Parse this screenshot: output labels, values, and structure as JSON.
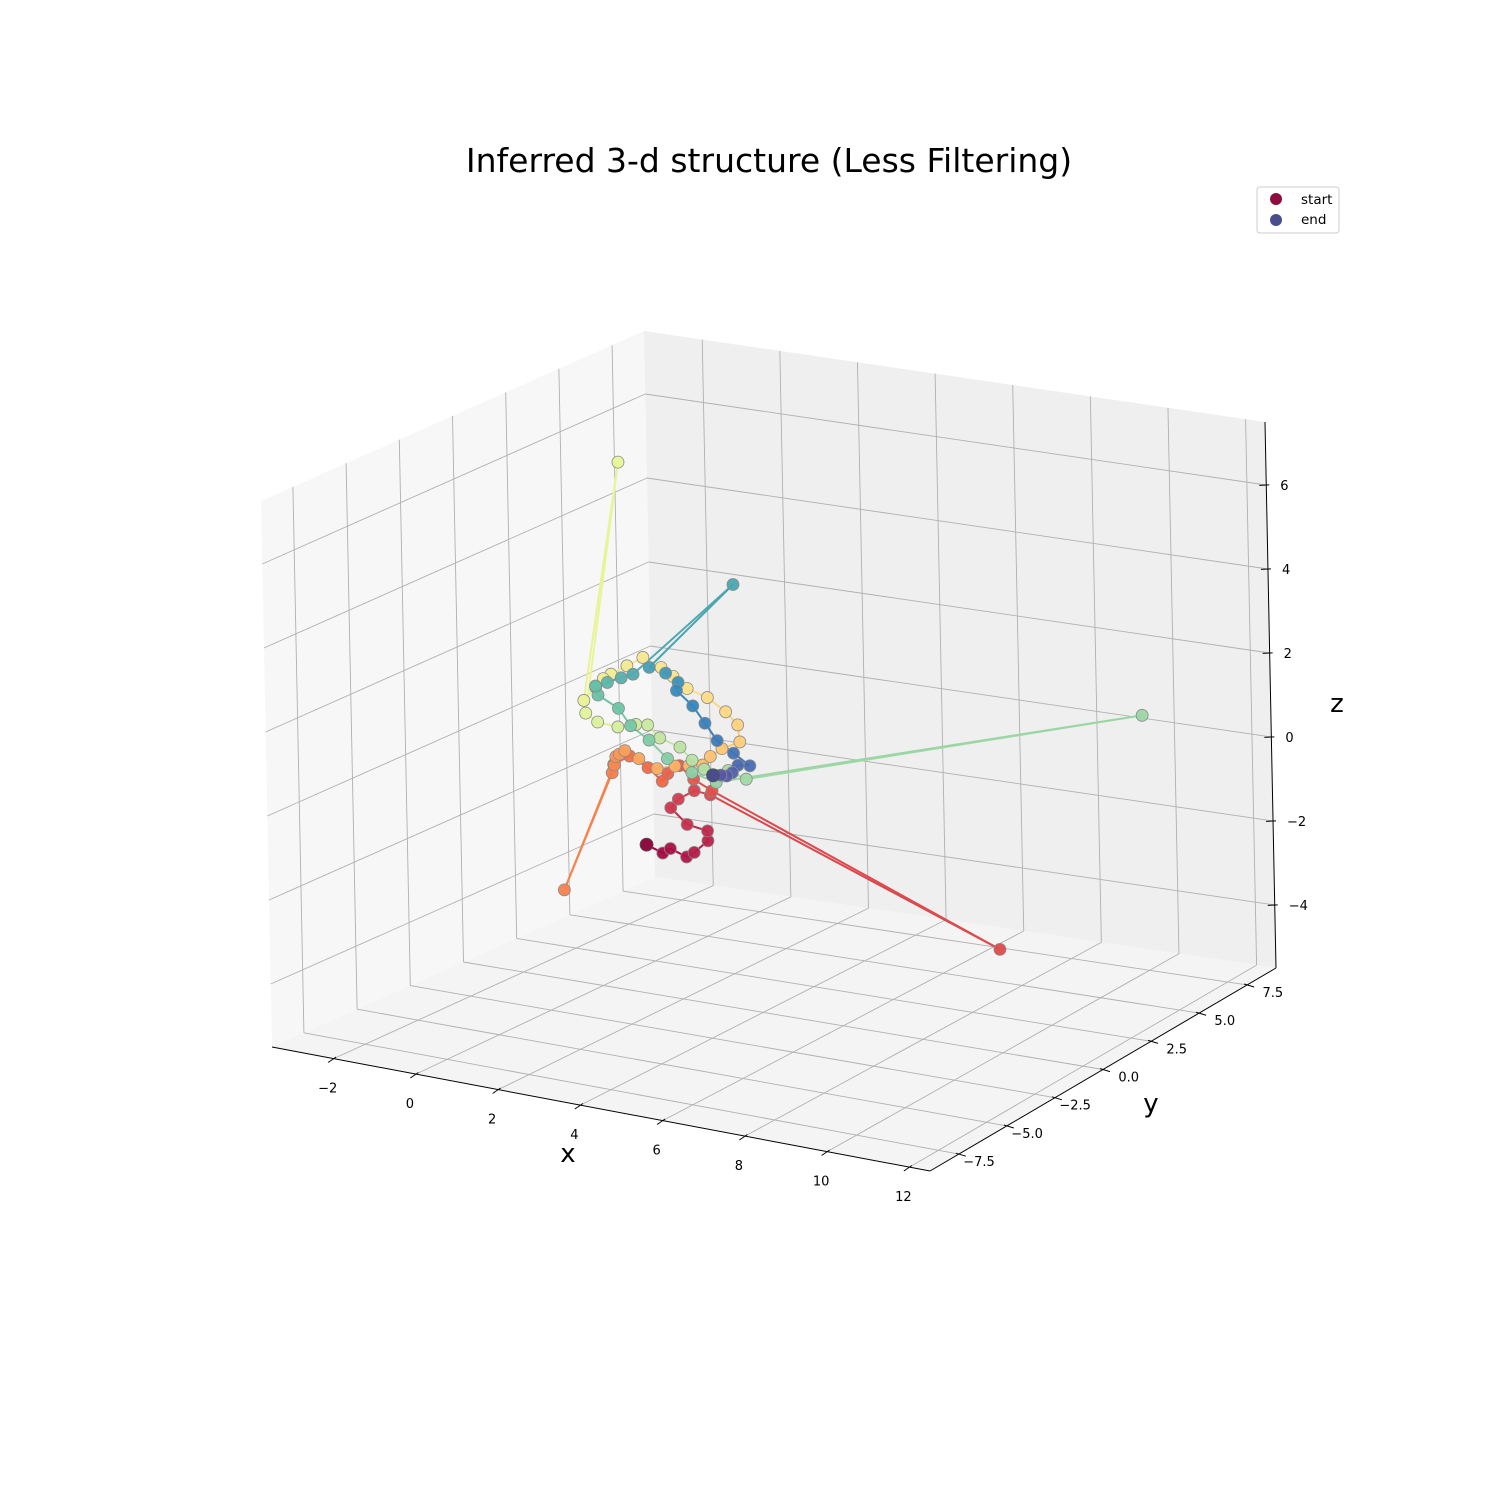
{
  "chart_data": {
    "type": "scatter",
    "projection": "3d",
    "title": "Inferred 3-d structure (Less Filtering)",
    "xlabel": "x",
    "ylabel": "y",
    "zlabel": "z",
    "xlim": [
      -3.5,
      12.5
    ],
    "ylim": [
      -9,
      9
    ],
    "zlim": [
      -5.5,
      7.5
    ],
    "xticks": [
      -2,
      0,
      2,
      4,
      6,
      8,
      10,
      12
    ],
    "yticks": [
      -7.5,
      -5.0,
      -2.5,
      0.0,
      2.5,
      5.0,
      7.5
    ],
    "zticks": [
      -4,
      -2,
      0,
      2,
      4,
      6
    ],
    "xtick_labels": [
      "−2",
      "0",
      "2",
      "4",
      "6",
      "8",
      "10",
      "12"
    ],
    "ytick_labels": [
      "−7.5",
      "−5.0",
      "−2.5",
      "0.0",
      "2.5",
      "5.0",
      "7.5"
    ],
    "ztick_labels": [
      "−4",
      "−2",
      "0",
      "2",
      "4",
      "6"
    ],
    "grid": true,
    "colormap": "Spectral",
    "legend": {
      "placement": "top-right",
      "entries": [
        {
          "label": "start",
          "color": "#8e0c3f"
        },
        {
          "label": "end",
          "color": "#4a4d8c"
        }
      ]
    },
    "trajectory_note_points_in_order": true,
    "points": [
      [
        0.1,
        2.0,
        -2.6
      ],
      [
        0.4,
        2.2,
        -2.8
      ],
      [
        0.7,
        2.0,
        -2.6
      ],
      [
        1.0,
        2.2,
        -2.8
      ],
      [
        1.3,
        2.0,
        -2.6
      ],
      [
        1.6,
        2.1,
        -2.3
      ],
      [
        1.7,
        1.9,
        -2.0
      ],
      [
        1.4,
        1.5,
        -1.8
      ],
      [
        1.1,
        1.3,
        -1.4
      ],
      [
        1.4,
        1.1,
        -1.1
      ],
      [
        1.7,
        1.3,
        -0.9
      ],
      [
        2.0,
        1.5,
        -1.0
      ],
      [
        5.9,
        8.0,
        -5.7
      ],
      [
        2.2,
        1.2,
        -0.8
      ],
      [
        1.9,
        0.9,
        -0.5
      ],
      [
        1.6,
        0.8,
        -0.2
      ],
      [
        1.2,
        1.0,
        -0.5
      ],
      [
        0.9,
        1.3,
        -0.8
      ],
      [
        0.6,
        1.2,
        -0.5
      ],
      [
        0.3,
        0.9,
        -0.2
      ],
      [
        0.0,
        0.7,
        -0.4
      ],
      [
        -0.2,
        1.0,
        -0.7
      ],
      [
        -2.0,
        2.0,
        -4.0
      ],
      [
        -0.3,
        1.3,
        -0.6
      ],
      [
        -0.1,
        1.0,
        -0.3
      ],
      [
        0.2,
        0.6,
        -0.1
      ],
      [
        0.5,
        0.3,
        0.1
      ],
      [
        0.9,
        0.2,
        0.0
      ],
      [
        1.3,
        0.3,
        -0.2
      ],
      [
        1.7,
        0.4,
        -0.1
      ],
      [
        2.1,
        0.3,
        0.0
      ],
      [
        2.5,
        0.2,
        0.1
      ],
      [
        2.8,
        0.0,
        0.4
      ],
      [
        3.2,
        -0.2,
        0.7
      ],
      [
        3.6,
        -0.1,
        0.9
      ],
      [
        3.4,
        0.2,
        1.2
      ],
      [
        3.0,
        0.4,
        1.4
      ],
      [
        2.6,
        0.3,
        1.7
      ],
      [
        2.2,
        0.1,
        1.9
      ],
      [
        1.8,
        0.2,
        2.1
      ],
      [
        1.4,
        0.4,
        2.2
      ],
      [
        1.0,
        0.3,
        2.4
      ],
      [
        0.7,
        0.1,
        2.2
      ],
      [
        0.4,
        -0.1,
        2.0
      ],
      [
        0.1,
        0.1,
        1.8
      ],
      [
        -0.2,
        0.3,
        1.5
      ],
      [
        -0.4,
        0.1,
        1.2
      ],
      [
        -1.5,
        4.0,
        5.8
      ],
      [
        -0.2,
        -0.2,
        1.0
      ],
      [
        0.2,
        -0.4,
        0.9
      ],
      [
        0.6,
        -0.2,
        0.8
      ],
      [
        1.0,
        -0.1,
        0.9
      ],
      [
        1.4,
        -0.3,
        1.0
      ],
      [
        1.8,
        -0.5,
        0.8
      ],
      [
        2.2,
        -0.3,
        0.6
      ],
      [
        2.6,
        -0.5,
        0.4
      ],
      [
        3.0,
        -0.7,
        0.3
      ],
      [
        3.5,
        -0.5,
        0.3
      ],
      [
        4.0,
        -0.6,
        0.2
      ],
      [
        11.2,
        5.0,
        1.4
      ],
      [
        3.4,
        -0.9,
        0.1
      ],
      [
        2.9,
        -1.1,
        0.3
      ],
      [
        2.4,
        -1.3,
        0.6
      ],
      [
        2.0,
        -1.4,
        1.0
      ],
      [
        1.6,
        -1.5,
        1.3
      ],
      [
        1.2,
        -1.3,
        1.6
      ],
      [
        0.8,
        -1.5,
        1.9
      ],
      [
        0.9,
        -1.8,
        2.2
      ],
      [
        1.3,
        -2.0,
        2.4
      ],
      [
        1.7,
        -2.1,
        2.6
      ],
      [
        2.1,
        -2.3,
        2.8
      ],
      [
        6.5,
        -6.0,
        6.6
      ],
      [
        2.3,
        -1.9,
        2.9
      ],
      [
        2.5,
        -1.5,
        2.7
      ],
      [
        2.6,
        -1.1,
        2.4
      ],
      [
        2.4,
        -0.8,
        2.1
      ],
      [
        2.8,
        -0.8,
        1.8
      ],
      [
        3.2,
        -1.0,
        1.5
      ],
      [
        3.6,
        -1.2,
        1.2
      ],
      [
        3.9,
        -1.0,
        0.9
      ],
      [
        4.2,
        -0.8,
        0.6
      ],
      [
        3.8,
        -0.6,
        0.5
      ],
      [
        3.5,
        -0.3,
        0.2
      ],
      [
        3.2,
        0.0,
        0.0
      ],
      [
        2.9,
        0.3,
        -0.1
      ],
      [
        2.6,
        0.5,
        -0.2
      ]
    ]
  }
}
